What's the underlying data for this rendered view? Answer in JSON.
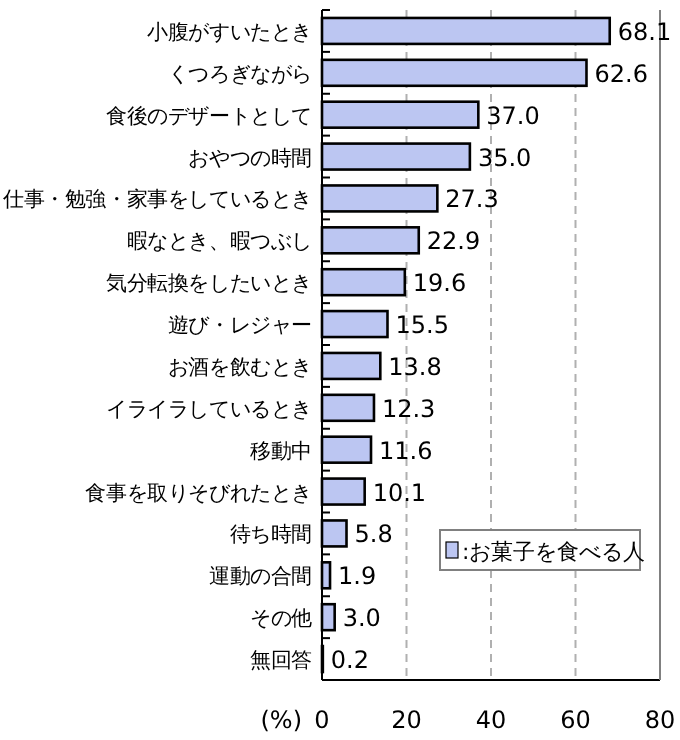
{
  "chart_data": {
    "type": "bar",
    "orientation": "horizontal",
    "xlabel": "(%)",
    "categories": [
      "小腹がすいたとき",
      "くつろぎながら",
      "食後のデザートとして",
      "おやつの時間",
      "仕事・勉強・家事をしているとき",
      "暇なとき、暇つぶし",
      "気分転換をしたいとき",
      "遊び・レジャー",
      "お酒を飲むとき",
      "イライラしているとき",
      "移動中",
      "食事を取りそびれたとき",
      "待ち時間",
      "運動の合間",
      "その他",
      "無回答"
    ],
    "series": [
      {
        "name": ":お菓子を食べる人",
        "color": "#bcc6f2",
        "values": [
          68.1,
          62.6,
          37.0,
          35.0,
          27.3,
          22.9,
          19.6,
          15.5,
          13.8,
          12.3,
          11.6,
          10.1,
          5.8,
          1.9,
          3.0,
          0.2
        ],
        "value_labels": [
          "68.1",
          "62.6",
          "37.0",
          "35.0",
          "27.3",
          "22.9",
          "19.6",
          "15.5",
          "13.8",
          "12.3",
          "11.6",
          "10.1",
          "5.8",
          "1.9",
          "3.0",
          "0.2"
        ]
      }
    ],
    "xlim": [
      0,
      80
    ],
    "xticks": [
      0,
      20,
      40,
      60,
      80
    ],
    "grid": "x",
    "legend": "bottom right"
  }
}
